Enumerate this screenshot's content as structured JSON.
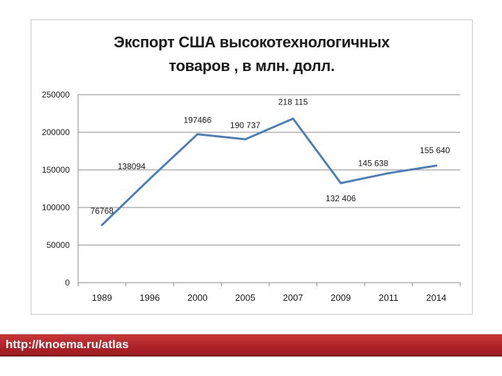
{
  "chart_data": {
    "type": "line",
    "title_lines": [
      "Экспорт США высокотехнологичных",
      "товаров , в млн. долл."
    ],
    "categories": [
      "1989",
      "1996",
      "2000",
      "2005",
      "2007",
      "2009",
      "2011",
      "2014"
    ],
    "series": [
      {
        "values": [
          76768,
          138094,
          197466,
          190737,
          218115,
          132406,
          145638,
          155640
        ]
      }
    ],
    "data_labels": [
      "76768",
      "138094",
      "197466",
      "190 737",
      "218 115",
      "132 406",
      "145 638",
      "155 640"
    ],
    "y_ticks": [
      "0",
      "50000",
      "100000",
      "150000",
      "200000",
      "250000"
    ],
    "ylim": [
      0,
      250000
    ],
    "grid": true,
    "legend": "none",
    "line_color": "#4a7ebb"
  },
  "footer": {
    "source_url": "http://knoema.ru/atlas"
  }
}
